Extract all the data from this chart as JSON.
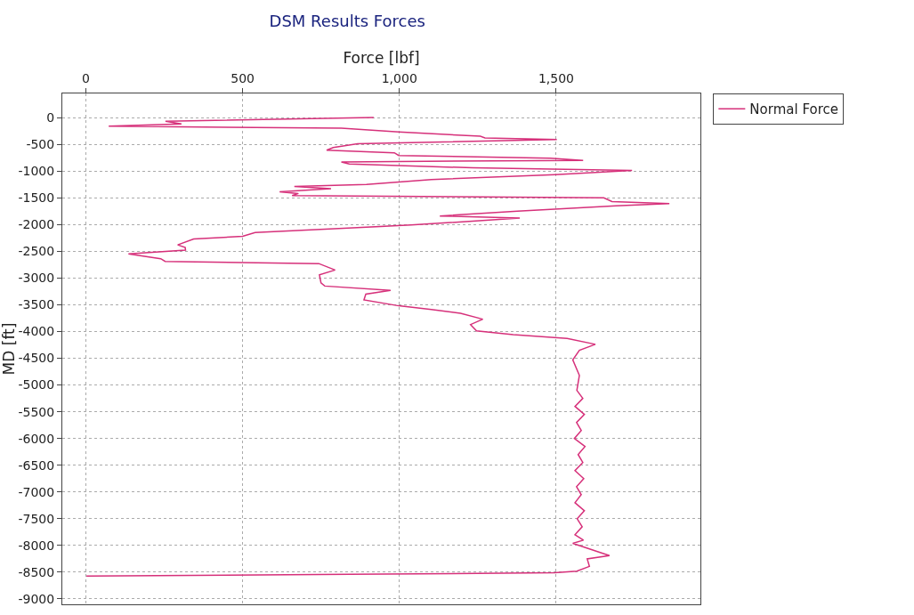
{
  "chart_data": {
    "type": "line",
    "title": "DSM Results Forces",
    "xlabel": "Force [lbf]",
    "ylabel": "MD [ft]",
    "xlim": [
      -75,
      1960
    ],
    "xticks": [
      0,
      500,
      {
        "value": 1000,
        "label": "1,000"
      },
      {
        "value": 1500,
        "label": "1,500"
      }
    ],
    "ylim": [
      -9100,
      450
    ],
    "yticks": [
      0,
      -500,
      -1000,
      -1500,
      -2000,
      -2500,
      -3000,
      -3500,
      -4000,
      -4500,
      -5000,
      -5500,
      -6000,
      -6500,
      -7000,
      -7500,
      -8000,
      -8500,
      -9000
    ],
    "grid": true,
    "legend": "top right",
    "marker": "none",
    "line_style": "solid",
    "series": [
      {
        "name": "Normal Force",
        "color": "#d6307a",
        "x": [
          918,
          254,
          305,
          73,
          815,
          998,
          1258,
          1273,
          1502,
          867,
          789,
          768,
          984,
          998,
          1481,
          1586,
          815,
          840,
          1234,
          1742,
          1496,
          1102,
          895,
          665,
          782,
          618,
          678,
          658,
          1652,
          1678,
          1861,
          1691,
          1377,
          1129,
          1384,
          1037,
          540,
          500,
          344,
          293,
          317,
          318,
          136,
          239,
          253,
          743,
          795,
          745,
          750,
          762,
          972,
          893,
          887,
          998,
          1102,
          1195,
          1266,
          1227,
          1246,
          1363,
          1535,
          1625,
          1574,
          1553,
          1574,
          1566,
          1585,
          1560,
          1590,
          1565,
          1580,
          1558,
          1592,
          1570,
          1585,
          1560,
          1588,
          1565,
          1580,
          1560,
          1590,
          1567,
          1583,
          1560,
          1587,
          1553,
          1670,
          1599,
          1606,
          1566,
          1495,
          840,
          2
        ],
        "values": [
          0,
          -70,
          -120,
          -160,
          -200,
          -270,
          -350,
          -380,
          -410,
          -490,
          -560,
          -610,
          -660,
          -710,
          -760,
          -800,
          -830,
          -870,
          -940,
          -990,
          -1070,
          -1160,
          -1250,
          -1290,
          -1330,
          -1390,
          -1420,
          -1460,
          -1500,
          -1570,
          -1610,
          -1650,
          -1750,
          -1840,
          -1880,
          -2010,
          -2150,
          -2220,
          -2270,
          -2380,
          -2430,
          -2480,
          -2550,
          -2640,
          -2690,
          -2730,
          -2850,
          -2940,
          -3090,
          -3150,
          -3230,
          -3300,
          -3410,
          -3520,
          -3590,
          -3660,
          -3770,
          -3870,
          -3990,
          -4060,
          -4130,
          -4240,
          -4350,
          -4530,
          -4820,
          -5100,
          -5250,
          -5400,
          -5550,
          -5700,
          -5850,
          -6000,
          -6150,
          -6300,
          -6450,
          -6600,
          -6750,
          -6900,
          -7050,
          -7200,
          -7350,
          -7500,
          -7650,
          -7800,
          -7900,
          -7960,
          -8190,
          -8250,
          -8390,
          -8480,
          -8510,
          -8540,
          -8570
        ]
      }
    ]
  }
}
